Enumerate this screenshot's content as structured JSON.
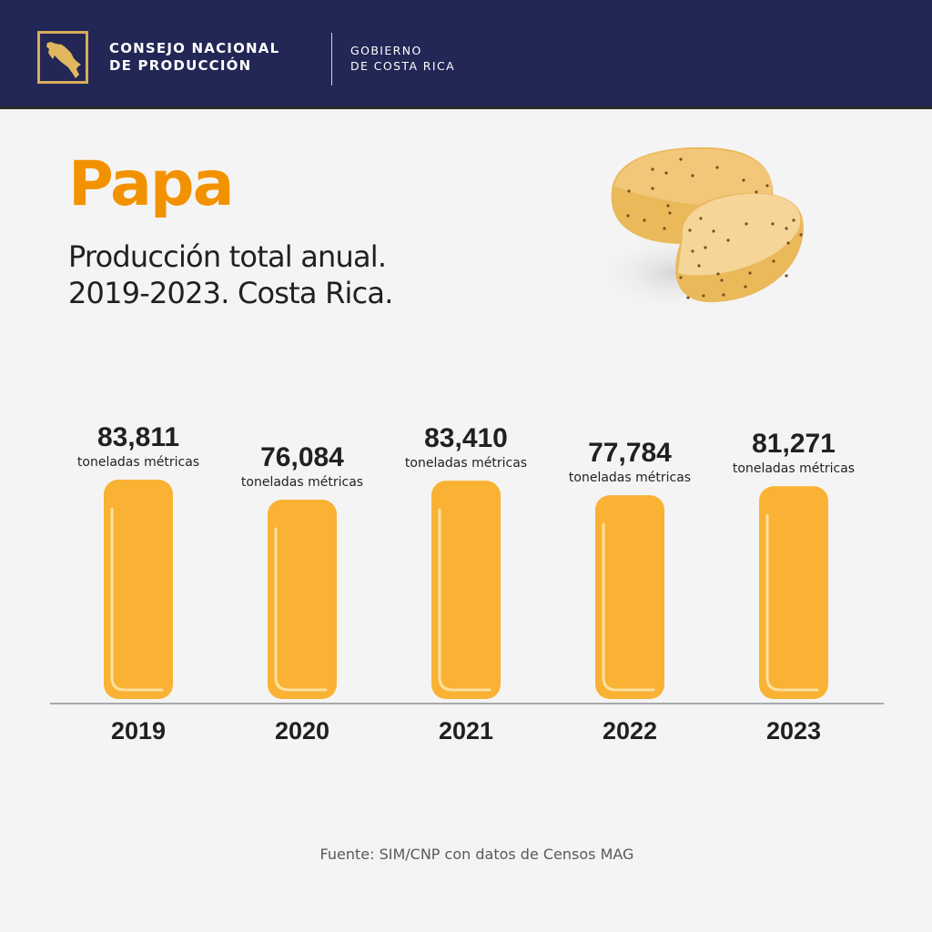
{
  "header": {
    "org_line1": "CONSEJO NACIONAL",
    "org_line2": "DE PRODUCCIÓN",
    "gov_line1": "GOBIERNO",
    "gov_line2": "DE COSTA RICA",
    "logo_icon": "costa-rica-map-icon"
  },
  "title": "Papa",
  "subtitle_line1": "Producción total anual.",
  "subtitle_line2": "2019-2023. Costa Rica.",
  "illustration": "potato-icon",
  "colors": {
    "header_bg": "#232755",
    "accent": "#f39200",
    "bar": "#f9b233",
    "logo_gold": "#d7ad5c"
  },
  "chart_data": {
    "type": "bar",
    "title": "Producción total anual. 2019-2023. Costa Rica.",
    "xlabel": "",
    "ylabel": "",
    "unit": "toneladas métricas",
    "categories": [
      "2019",
      "2020",
      "2021",
      "2022",
      "2023"
    ],
    "values": [
      83811,
      76084,
      83410,
      77784,
      81271
    ],
    "value_labels": [
      "83,811",
      "76,084",
      "83,410",
      "77,784",
      "81,271"
    ],
    "grid": false
  },
  "source": "Fuente: SIM/CNP con datos de Censos MAG"
}
